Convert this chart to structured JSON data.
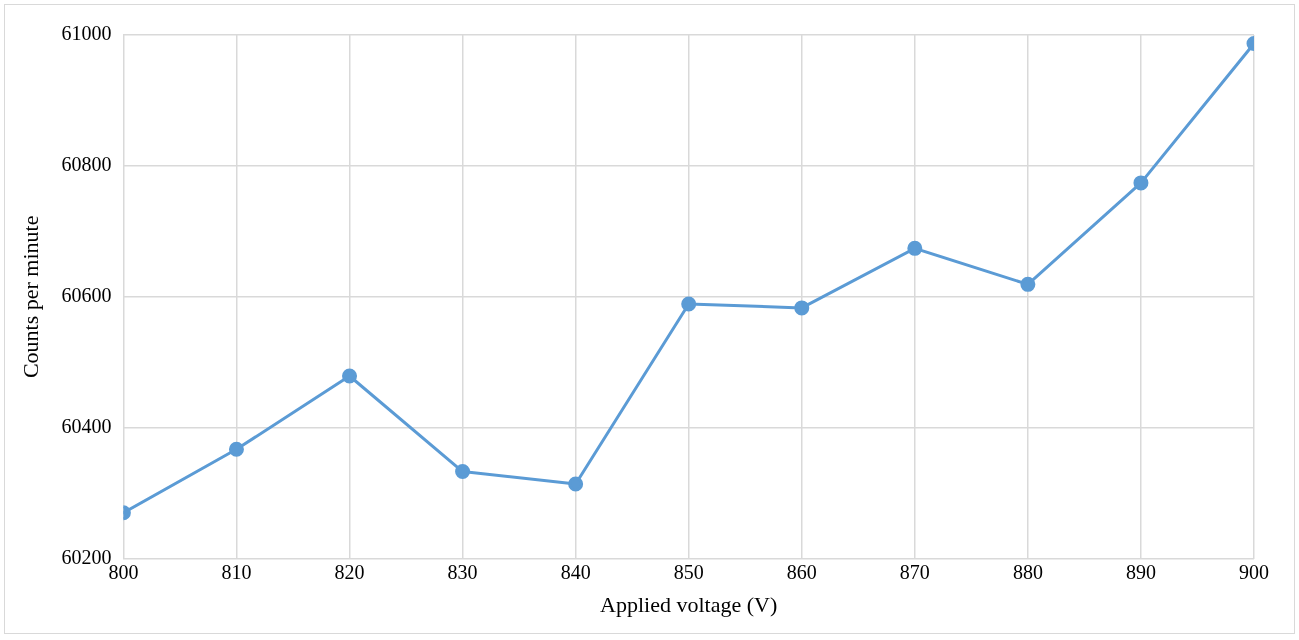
{
  "chart_data": {
    "type": "line",
    "xlabel": "Applied voltage (V)",
    "ylabel": "Counts per minute",
    "x": [
      800,
      810,
      820,
      830,
      840,
      850,
      860,
      870,
      880,
      890,
      900
    ],
    "series": [
      {
        "color": "#5b9bd5",
        "values": [
          60270,
          60367,
          60479,
          60333,
          60314,
          60589,
          60583,
          60674,
          60619,
          60774,
          60987
        ]
      }
    ],
    "xlim": [
      800,
      900
    ],
    "xticks": [
      800,
      810,
      820,
      830,
      840,
      850,
      860,
      870,
      880,
      890,
      900
    ],
    "ylim": [
      60200,
      61000
    ],
    "yticks": [
      60200,
      60400,
      60600,
      60800,
      61000
    ],
    "grid": true,
    "legend": false,
    "marker": "circle",
    "line_style": "solid"
  }
}
